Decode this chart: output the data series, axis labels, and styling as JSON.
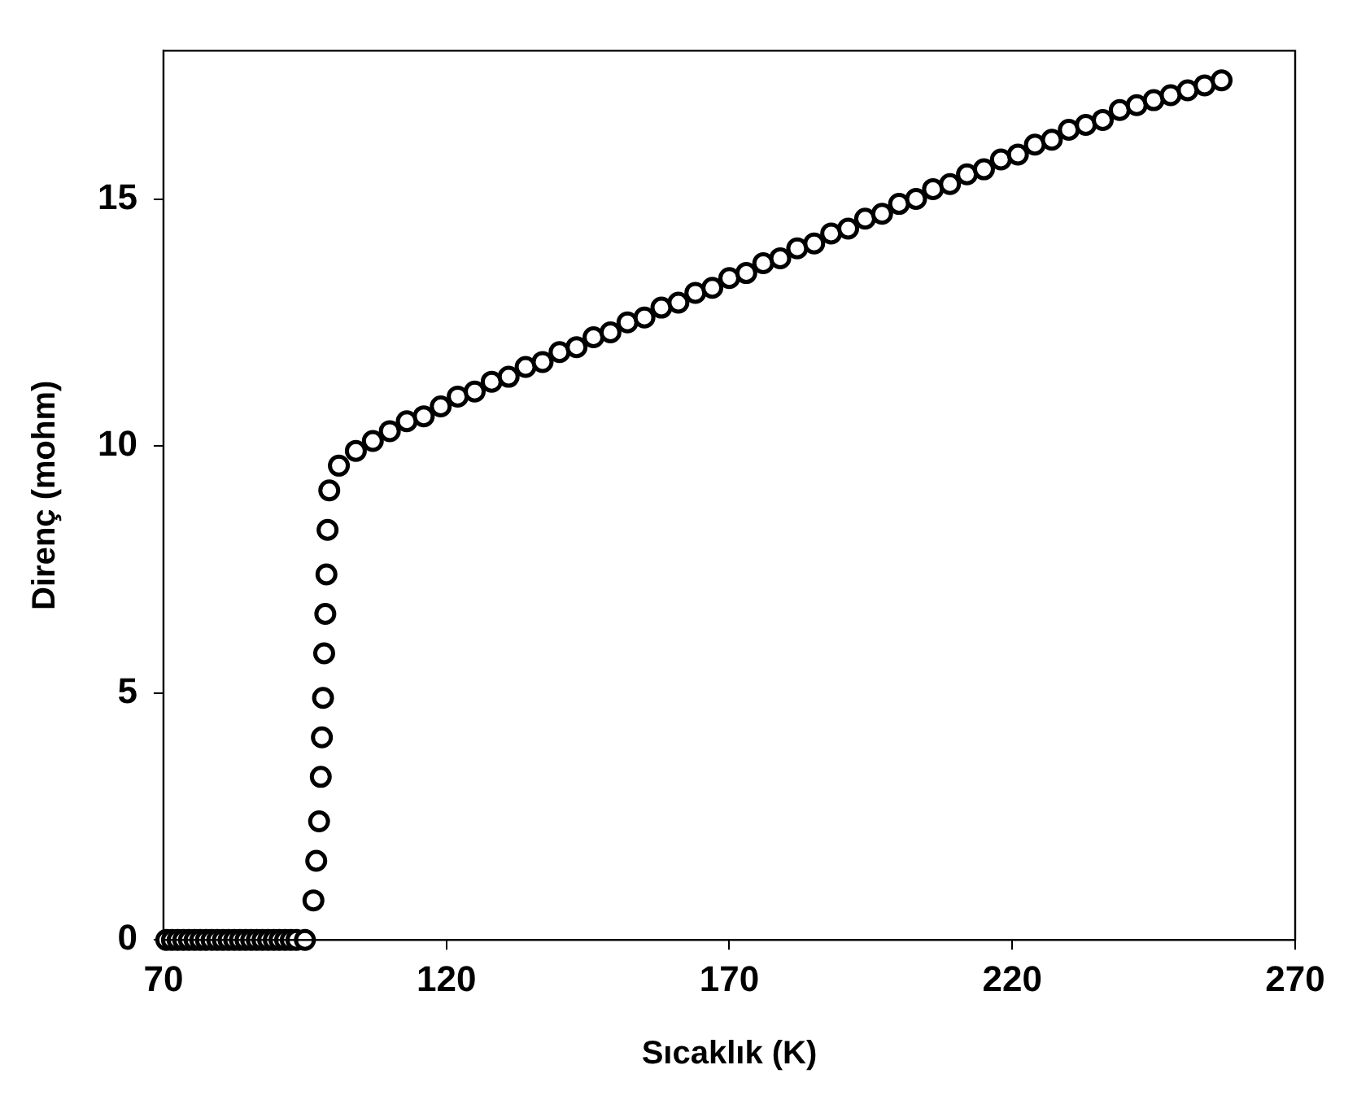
{
  "chart_data": {
    "type": "scatter",
    "xlabel": "Sıcaklık (K)",
    "ylabel": "Direnç (mohm)",
    "xlim": [
      70,
      270
    ],
    "xticks": [
      70,
      120,
      170,
      220,
      270
    ],
    "ylim": [
      0,
      18
    ],
    "yticks": [
      0,
      5,
      10,
      15
    ],
    "grid": false,
    "legend": false,
    "marker": "circle",
    "series": [
      {
        "color": "#000000",
        "x": [
          70.5,
          71.5,
          72.5,
          73.5,
          74.5,
          75.5,
          76.5,
          77.5,
          78.5,
          79.5,
          80.5,
          81.5,
          82.5,
          83.5,
          84.5,
          85.5,
          86.5,
          87.5,
          88.5,
          89.5,
          90.5,
          91.5,
          92.5,
          93.5,
          95,
          96.5,
          97,
          97.5,
          97.8,
          98,
          98.2,
          98.4,
          98.6,
          98.8,
          99,
          99.3,
          101,
          104,
          107,
          110,
          113,
          116,
          119,
          122,
          125,
          128,
          131,
          134,
          137,
          140,
          143,
          146,
          149,
          152,
          155,
          158,
          161,
          164,
          167,
          170,
          173,
          176,
          179,
          182,
          185,
          188,
          191,
          194,
          197,
          200,
          203,
          206,
          209,
          212,
          215,
          218,
          221,
          224,
          227,
          230,
          233,
          236,
          239,
          242,
          245,
          248,
          251,
          254,
          257
        ],
        "values": [
          0,
          0,
          0,
          0,
          0,
          0,
          0,
          0,
          0,
          0,
          0,
          0,
          0,
          0,
          0,
          0,
          0,
          0,
          0,
          0,
          0,
          0,
          0,
          0,
          0,
          0.8,
          1.6,
          2.4,
          3.3,
          4.1,
          4.9,
          5.8,
          6.6,
          7.4,
          8.3,
          9.1,
          9.6,
          9.9,
          10.1,
          10.3,
          10.5,
          10.6,
          10.8,
          11.0,
          11.1,
          11.3,
          11.4,
          11.6,
          11.7,
          11.9,
          12.0,
          12.2,
          12.3,
          12.5,
          12.6,
          12.8,
          12.9,
          13.1,
          13.2,
          13.4,
          13.5,
          13.7,
          13.8,
          14.0,
          14.1,
          14.3,
          14.4,
          14.6,
          14.7,
          14.9,
          15.0,
          15.2,
          15.3,
          15.5,
          15.6,
          15.8,
          15.9,
          16.1,
          16.2,
          16.4,
          16.5,
          16.6,
          16.8,
          16.9,
          17.0,
          17.1,
          17.2,
          17.3,
          17.4
        ]
      }
    ]
  }
}
